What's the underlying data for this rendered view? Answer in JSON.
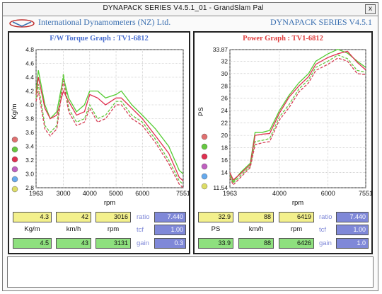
{
  "window": {
    "title": "DYNAPACK SERIES V4.5.1_01  - GrandSlam Pal",
    "close_label": "x"
  },
  "header": {
    "company": "International Dynamometers (NZ) Ltd.",
    "product": "DYNAPACK SERIES V4.5.1"
  },
  "colors": {
    "green": "#55cc33",
    "red": "#e03050",
    "dash_green": "#66c840",
    "dash_red": "#d64058",
    "yellow_box": "#f3f08c",
    "green_box": "#8ee07e",
    "blue_box": "#7f88d8"
  },
  "readouts": {
    "left": {
      "row1": [
        "4.3",
        "42",
        "3016"
      ],
      "units": [
        "Kg/m",
        "km/h",
        "rpm"
      ],
      "row3": [
        "4.5",
        "43",
        "3131"
      ],
      "right_labels": [
        "ratio",
        "tcf",
        "gain"
      ],
      "right_values": [
        "7.440",
        "1.00",
        "0.3"
      ]
    },
    "right": {
      "row1": [
        "32.9",
        "88",
        "6419"
      ],
      "units": [
        "PS",
        "km/h",
        "rpm"
      ],
      "row3": [
        "33.9",
        "88",
        "6426"
      ],
      "right_labels": [
        "ratio",
        "tcf",
        "gain"
      ],
      "right_values": [
        "7.440",
        "1.00",
        "1.0"
      ]
    }
  },
  "chart_data": [
    {
      "type": "line",
      "title": "F/W Torque Graph : TV1-6812",
      "title_color": "#4a6fd0",
      "xlabel": "rpm",
      "ylabel": "Kg/m",
      "xlim": [
        1963,
        7551
      ],
      "ylim": [
        2.8,
        4.8
      ],
      "xticks": [
        1963,
        3000,
        4000,
        5000,
        6000,
        7551
      ],
      "yticks": [
        "2.8",
        "3.0",
        "3.2",
        "3.4",
        "3.6",
        "3.8",
        "4.0",
        "4.2",
        "4.4",
        "4.6",
        "4.8"
      ],
      "grid": true,
      "series": [
        {
          "color": "#55cc33",
          "dash": false,
          "x": [
            1963,
            2050,
            2300,
            2500,
            2750,
            3000,
            3200,
            3500,
            3800,
            4000,
            4300,
            4600,
            5000,
            5200,
            5600,
            6000,
            6500,
            7000,
            7400,
            7551
          ],
          "y": [
            4.2,
            4.5,
            4.0,
            3.8,
            3.9,
            4.4,
            4.1,
            3.9,
            4.0,
            4.2,
            4.2,
            4.1,
            4.15,
            4.2,
            4.0,
            3.85,
            3.65,
            3.4,
            3.05,
            3.0
          ]
        },
        {
          "color": "#e03050",
          "dash": false,
          "x": [
            1963,
            2050,
            2300,
            2500,
            2750,
            3000,
            3200,
            3500,
            3800,
            4000,
            4300,
            4600,
            5000,
            5200,
            5600,
            6000,
            6500,
            7000,
            7400,
            7551
          ],
          "y": [
            4.15,
            4.4,
            3.95,
            3.8,
            3.85,
            4.2,
            4.05,
            3.85,
            3.9,
            4.15,
            4.1,
            4.0,
            4.1,
            4.1,
            3.95,
            3.8,
            3.55,
            3.3,
            2.95,
            2.9
          ]
        },
        {
          "color": "#66c840",
          "dash": true,
          "x": [
            1963,
            2050,
            2300,
            2500,
            2750,
            3000,
            3200,
            3500,
            3800,
            4000,
            4300,
            4600,
            5000,
            5200,
            5600,
            6000,
            6500,
            7000,
            7400,
            7551
          ],
          "y": [
            4.1,
            4.3,
            3.7,
            3.6,
            3.7,
            4.45,
            3.95,
            3.75,
            3.8,
            4.0,
            3.8,
            3.85,
            4.05,
            4.05,
            3.85,
            3.75,
            3.5,
            3.2,
            2.9,
            2.85
          ]
        },
        {
          "color": "#d64058",
          "dash": true,
          "x": [
            1963,
            2050,
            2300,
            2500,
            2750,
            3000,
            3200,
            3500,
            3800,
            4000,
            4300,
            4600,
            5000,
            5200,
            5600,
            6000,
            6500,
            7000,
            7400,
            7551
          ],
          "y": [
            4.05,
            4.2,
            3.65,
            3.55,
            3.65,
            4.35,
            3.9,
            3.7,
            3.75,
            3.95,
            3.75,
            3.8,
            4.0,
            4.0,
            3.8,
            3.7,
            3.45,
            3.15,
            2.85,
            2.8
          ]
        }
      ]
    },
    {
      "type": "line",
      "title": "Power Graph : TV1-6812",
      "title_color": "#e04040",
      "xlabel": "rpm",
      "ylabel": "PS",
      "xlim": [
        1963,
        7551
      ],
      "ylim": [
        11.54,
        33.87
      ],
      "xticks": [
        1963,
        4000,
        6000,
        7551
      ],
      "yticks": [
        "11.54",
        "14",
        "16",
        "18",
        "20",
        "22",
        "24",
        "26",
        "28",
        "30",
        "32",
        "33.87"
      ],
      "grid": true,
      "series": [
        {
          "color": "#55cc33",
          "dash": false,
          "x": [
            1963,
            2100,
            2400,
            2800,
            3000,
            3300,
            3600,
            4000,
            4400,
            4800,
            5200,
            5500,
            6000,
            6400,
            6800,
            7200,
            7551
          ],
          "y": [
            14.0,
            12.5,
            14.0,
            15.5,
            20.5,
            20.5,
            20.8,
            24.0,
            26.5,
            28.5,
            30.0,
            32.0,
            33.2,
            33.9,
            33.3,
            32.0,
            31.0
          ]
        },
        {
          "color": "#e03050",
          "dash": false,
          "x": [
            1963,
            2100,
            2400,
            2800,
            3000,
            3300,
            3600,
            4000,
            4400,
            4800,
            5200,
            5500,
            6000,
            6400,
            6800,
            7200,
            7551
          ],
          "y": [
            14.0,
            12.8,
            13.8,
            15.3,
            20.0,
            20.2,
            20.3,
            23.6,
            26.2,
            28.0,
            29.5,
            31.5,
            32.6,
            33.2,
            33.6,
            31.8,
            30.6
          ]
        },
        {
          "color": "#66c840",
          "dash": true,
          "x": [
            1963,
            2100,
            2400,
            2800,
            3000,
            3300,
            3600,
            4000,
            4400,
            4800,
            5200,
            5500,
            6000,
            6400,
            6800,
            7200,
            7551
          ],
          "y": [
            13.5,
            12.3,
            13.5,
            15.0,
            19.0,
            19.2,
            19.5,
            23.0,
            25.0,
            27.5,
            29.0,
            31.0,
            32.0,
            33.0,
            32.4,
            30.5,
            30.2
          ]
        },
        {
          "color": "#d64058",
          "dash": true,
          "x": [
            1963,
            2100,
            2400,
            2800,
            3000,
            3300,
            3600,
            4000,
            4400,
            4800,
            5200,
            5500,
            6000,
            6400,
            6800,
            7200,
            7551
          ],
          "y": [
            13.2,
            12.0,
            13.2,
            14.8,
            18.5,
            18.8,
            19.0,
            22.5,
            24.5,
            27.0,
            28.5,
            30.5,
            31.5,
            32.5,
            32.0,
            30.0,
            29.8
          ]
        }
      ]
    }
  ]
}
